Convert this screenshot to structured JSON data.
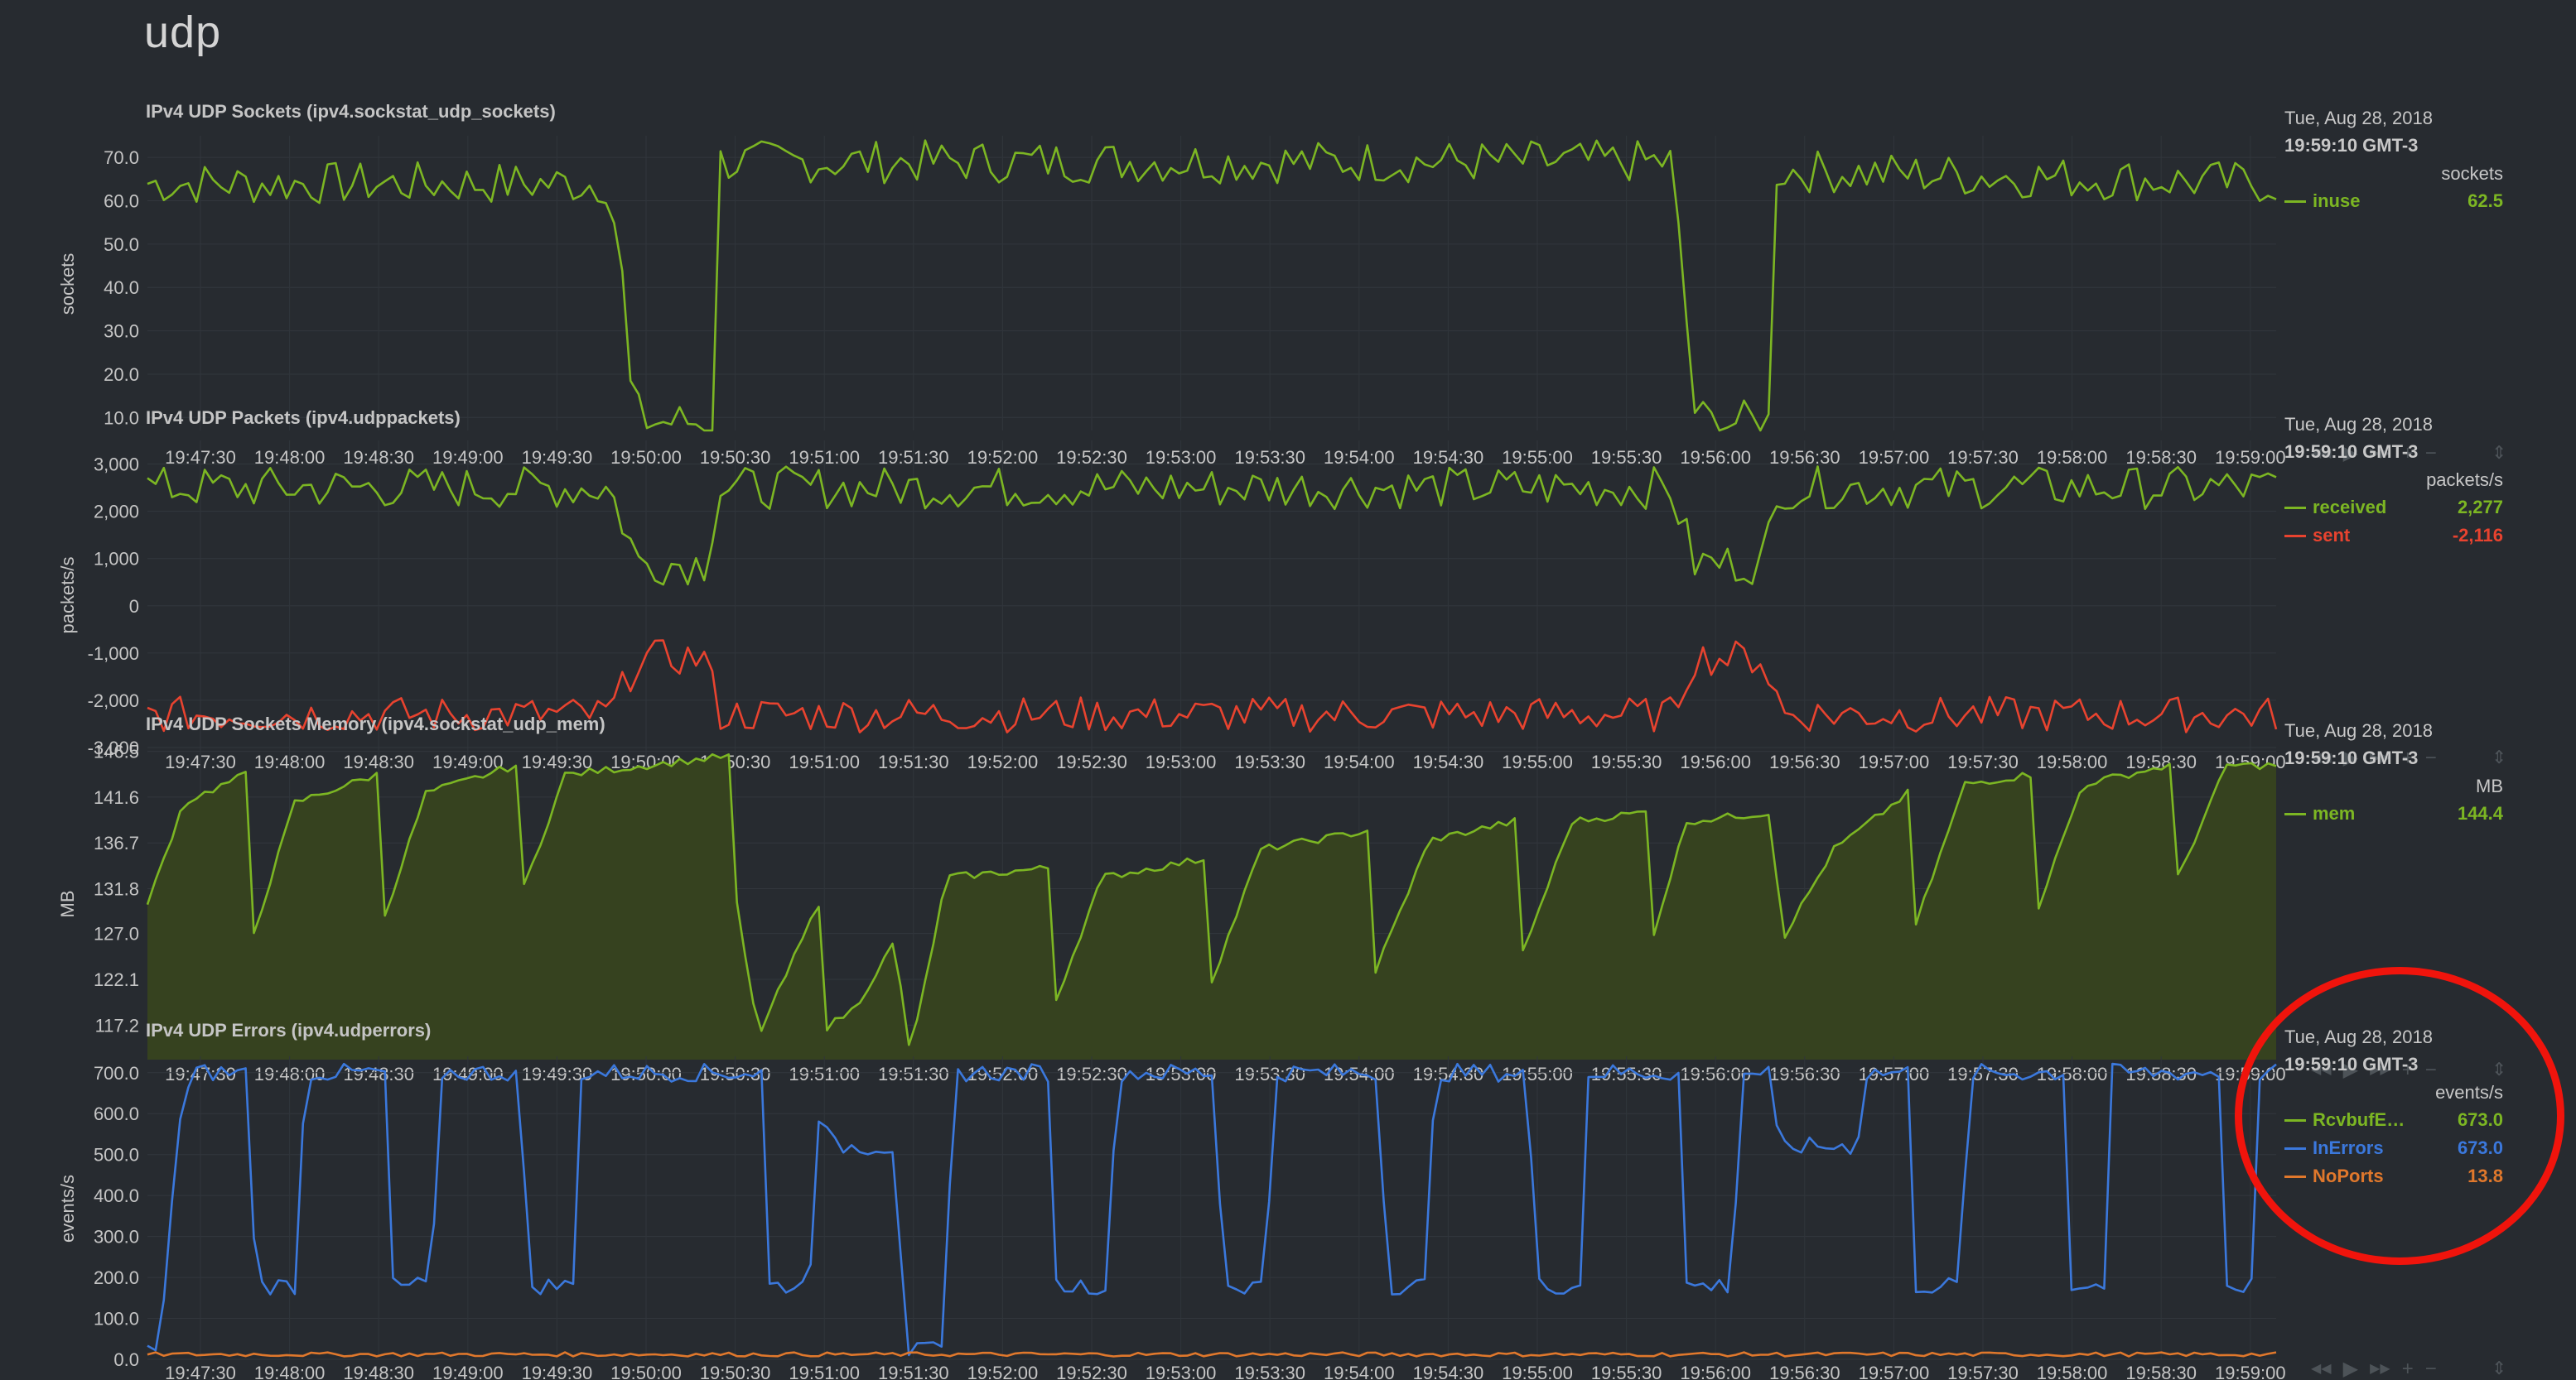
{
  "page": {
    "title": "udp"
  },
  "legend_common": {
    "date": "Tue, Aug 28, 2018",
    "time": "19:59:10 GMT-3"
  },
  "controls": {
    "icons": [
      "rewind-icon",
      "play-icon",
      "forward-icon",
      "zoom-in-icon",
      "zoom-out-icon",
      "resize-handle-icon"
    ]
  },
  "x_ticks": [
    "19:47:30",
    "19:48:00",
    "19:48:30",
    "19:49:00",
    "19:49:30",
    "19:50:00",
    "19:50:30",
    "19:51:00",
    "19:51:30",
    "19:52:00",
    "19:52:30",
    "19:53:00",
    "19:53:30",
    "19:54:00",
    "19:54:30",
    "19:55:00",
    "19:55:30",
    "19:56:00",
    "19:56:30",
    "19:57:00",
    "19:57:30",
    "19:58:00",
    "19:58:30",
    "19:59:00"
  ],
  "chart_data": [
    {
      "id": "udp_sockets",
      "type": "line",
      "title": "IPv4 UDP Sockets (ipv4.sockstat_udp_sockets)",
      "ylabel": "sockets",
      "units": "sockets",
      "yticks": [
        "70.0",
        "60.0",
        "50.0",
        "40.0",
        "30.0",
        "20.0",
        "10.0"
      ],
      "ylim": [
        7,
        75
      ],
      "xlim": [
        "19:47:20",
        "19:59:10"
      ],
      "grid": true,
      "legend_placement": "right",
      "series": [
        {
          "name": "inuse",
          "color": "#7cb623",
          "value": "62.5",
          "segments": [
            [
              0,
              64
            ],
            [
              282,
              64
            ],
            [
              290,
              42
            ],
            [
              296,
              12
            ],
            [
              306,
              9
            ],
            [
              345,
              9
            ],
            [
              348,
              69
            ],
            [
              930,
              69
            ],
            [
              938,
              42
            ],
            [
              944,
              12
            ],
            [
              952,
              9
            ],
            [
              990,
              9
            ],
            [
              993,
              67
            ],
            [
              1300,
              64
            ]
          ],
          "noise": 5
        }
      ]
    },
    {
      "id": "udp_packets",
      "type": "line",
      "title": "IPv4 UDP Packets (ipv4.udppackets)",
      "ylabel": "packets/s",
      "units": "packets/s",
      "yticks": [
        "3,000",
        "2,000",
        "1,000",
        "0",
        "-1,000",
        "-2,000",
        "-3,000"
      ],
      "ylim": [
        -3000,
        3500
      ],
      "xlim": [
        "19:47:20",
        "19:59:10"
      ],
      "grid": true,
      "legend_placement": "right",
      "series": [
        {
          "name": "received",
          "color": "#7cb623",
          "value": "2,277",
          "segments": [
            [
              0,
              2500
            ],
            [
              282,
              2500
            ],
            [
              300,
              900
            ],
            [
              340,
              900
            ],
            [
              350,
              2500
            ],
            [
              930,
              2500
            ],
            [
              945,
              900
            ],
            [
              985,
              900
            ],
            [
              1000,
              2500
            ],
            [
              1300,
              2500
            ]
          ],
          "noise": 450
        },
        {
          "name": "sent",
          "color": "#e8432f",
          "value": "-2,116",
          "segments": [
            [
              0,
              -2300
            ],
            [
              282,
              -2300
            ],
            [
              300,
              -1100
            ],
            [
              340,
              -1100
            ],
            [
              350,
              -2300
            ],
            [
              930,
              -2300
            ],
            [
              945,
              -1100
            ],
            [
              985,
              -1100
            ],
            [
              1000,
              -2300
            ],
            [
              1300,
              -2300
            ]
          ],
          "noise": 380
        }
      ]
    },
    {
      "id": "udp_mem",
      "type": "area",
      "title": "IPv4 UDP Sockets Memory (ipv4.sockstat_udp_mem)",
      "ylabel": "MB",
      "units": "MB",
      "yticks": [
        "146.5",
        "141.6",
        "136.7",
        "131.8",
        "127.0",
        "122.1",
        "117.2"
      ],
      "ylim": [
        113.5,
        147
      ],
      "xlim": [
        "19:47:20",
        "19:59:10"
      ],
      "grid": true,
      "legend_placement": "right",
      "series": [
        {
          "name": "mem",
          "color": "#7cb623",
          "fill": "#36421f",
          "value": "144.4",
          "segments": [
            [
              0,
              130
            ],
            [
              22,
              141
            ],
            [
              60,
              144
            ],
            [
              63,
              126
            ],
            [
              90,
              141
            ],
            [
              140,
              144
            ],
            [
              143,
              128
            ],
            [
              170,
              142
            ],
            [
              225,
              145
            ],
            [
              228,
              131
            ],
            [
              255,
              144
            ],
            [
              355,
              146
            ],
            [
              360,
              130
            ],
            [
              373,
              116
            ],
            [
              412,
              131
            ],
            [
              415,
              117
            ],
            [
              432,
              119
            ],
            [
              456,
              126
            ],
            [
              466,
              114
            ],
            [
              488,
              133
            ],
            [
              550,
              134
            ],
            [
              555,
              120
            ],
            [
              583,
              133
            ],
            [
              645,
              135
            ],
            [
              650,
              122
            ],
            [
              680,
              136
            ],
            [
              745,
              138
            ],
            [
              750,
              123
            ],
            [
              783,
              137
            ],
            [
              835,
              139
            ],
            [
              840,
              125
            ],
            [
              870,
              139
            ],
            [
              915,
              140
            ],
            [
              918,
              126
            ],
            [
              940,
              139
            ],
            [
              993,
              140
            ],
            [
              997,
              126
            ],
            [
              1030,
              136
            ],
            [
              1075,
              142
            ],
            [
              1078,
              127
            ],
            [
              1110,
              143
            ],
            [
              1150,
              144
            ],
            [
              1155,
              130
            ],
            [
              1182,
              143
            ],
            [
              1235,
              145
            ],
            [
              1240,
              133
            ],
            [
              1270,
              145
            ],
            [
              1300,
              145
            ]
          ],
          "noise": 0.4
        }
      ]
    },
    {
      "id": "udp_errors",
      "type": "line",
      "title": "IPv4 UDP Errors (ipv4.udperrors)",
      "ylabel": "events/s",
      "units": "events/s",
      "yticks": [
        "700.0",
        "600.0",
        "500.0",
        "400.0",
        "300.0",
        "200.0",
        "100.0",
        "0.0"
      ],
      "ylim": [
        0,
        740
      ],
      "xlim": [
        "19:47:20",
        "19:59:10"
      ],
      "grid": true,
      "legend_placement": "right",
      "series": [
        {
          "name": "RcvbufE…",
          "color": "#7cb623",
          "value": "673.0",
          "segments": [],
          "noise": 0
        },
        {
          "name": "InErrors",
          "color": "#3b78dc",
          "value": "673.0",
          "segments": [
            [
              0,
              20
            ],
            [
              8,
              20
            ],
            [
              18,
              560
            ],
            [
              28,
              700
            ],
            [
              62,
              700
            ],
            [
              66,
              180
            ],
            [
              92,
              180
            ],
            [
              96,
              700
            ],
            [
              145,
              700
            ],
            [
              150,
              180
            ],
            [
              174,
              180
            ],
            [
              178,
              700
            ],
            [
              228,
              700
            ],
            [
              232,
              180
            ],
            [
              260,
              180
            ],
            [
              265,
              700
            ],
            [
              375,
              700
            ],
            [
              378,
              180
            ],
            [
              404,
              180
            ],
            [
              410,
              600
            ],
            [
              418,
              520
            ],
            [
              458,
              520
            ],
            [
              462,
              20
            ],
            [
              486,
              20
            ],
            [
              493,
              700
            ],
            [
              550,
              700
            ],
            [
              555,
              180
            ],
            [
              587,
              180
            ],
            [
              592,
              700
            ],
            [
              652,
              700
            ],
            [
              657,
              180
            ],
            [
              683,
              180
            ],
            [
              688,
              700
            ],
            [
              752,
              700
            ],
            [
              757,
              180
            ],
            [
              782,
              180
            ],
            [
              786,
              700
            ],
            [
              843,
              700
            ],
            [
              848,
              180
            ],
            [
              876,
              180
            ],
            [
              880,
              700
            ],
            [
              935,
              700
            ],
            [
              940,
              180
            ],
            [
              968,
              180
            ],
            [
              973,
              700
            ],
            [
              990,
              700
            ],
            [
              996,
              520
            ],
            [
              1044,
              520
            ],
            [
              1050,
              700
            ],
            [
              1075,
              700
            ],
            [
              1080,
              180
            ],
            [
              1108,
              180
            ],
            [
              1112,
              700
            ],
            [
              1170,
              700
            ],
            [
              1175,
              180
            ],
            [
              1195,
              180
            ],
            [
              1200,
              700
            ],
            [
              1265,
              700
            ],
            [
              1270,
              180
            ],
            [
              1285,
              180
            ],
            [
              1290,
              700
            ],
            [
              1300,
              700
            ]
          ],
          "noise": 22
        },
        {
          "name": "NoPorts",
          "color": "#e0782c",
          "value": "13.8",
          "segments": [
            [
              0,
              12
            ],
            [
              1300,
              12
            ]
          ],
          "noise": 5
        }
      ]
    }
  ]
}
